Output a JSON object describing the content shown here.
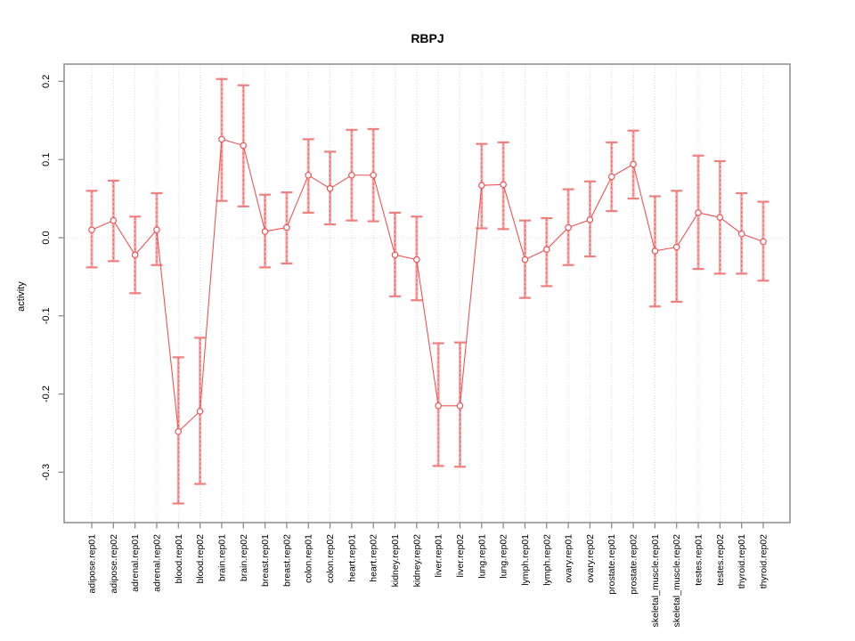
{
  "chart_data": {
    "type": "scatter",
    "subtype": "points-with-error-bars-and-connecting-line",
    "title": "RBPJ",
    "xlabel": "",
    "ylabel": "activity",
    "ylim": [
      -0.36,
      0.22
    ],
    "yticks": [
      "0.2",
      "0.1",
      "0.0",
      "-0.1",
      "-0.2",
      "-0.3"
    ],
    "grid": {
      "horizontal_dotted_at": 0,
      "vertical_dotted": "every category",
      "legend": "none"
    },
    "colors": {
      "point_stroke": "#ee5555",
      "point_fill": "#ffffff",
      "connect_line": "#ee5555",
      "errorbar_band": "#f8aaaa",
      "errorbar_dash": "#ee5555",
      "errorbar_cap": "#f08080",
      "frame": "#8c8c8c",
      "tick": "#8c8c8c",
      "gridline": "#d9d9d9",
      "text": "#000000"
    },
    "categories": [
      "adipose.rep01",
      "adipose.rep02",
      "adrenal.rep01",
      "adrenal.rep02",
      "blood.rep01",
      "blood.rep02",
      "brain.rep01",
      "brain.rep02",
      "breast.rep01",
      "breast.rep02",
      "colon.rep01",
      "colon.rep02",
      "heart.rep01",
      "heart.rep02",
      "kidney.rep01",
      "kidney.rep02",
      "liver.rep01",
      "liver.rep02",
      "lung.rep01",
      "lung.rep02",
      "lymph.rep01",
      "lymph.rep02",
      "ovary.rep01",
      "ovary.rep02",
      "prostate.rep01",
      "prostate.rep02",
      "skeletal_muscle.rep01",
      "skeletal_muscle.rep02",
      "testes.rep01",
      "testes.rep02",
      "thyroid.rep01",
      "thyroid.rep02"
    ],
    "series": [
      {
        "name": "activity",
        "values": [
          0.01,
          0.022,
          -0.022,
          0.01,
          -0.248,
          -0.222,
          0.126,
          0.118,
          0.008,
          0.013,
          0.08,
          0.063,
          0.08,
          0.08,
          -0.022,
          -0.028,
          -0.215,
          -0.215,
          0.067,
          0.068,
          -0.028,
          -0.015,
          0.013,
          0.023,
          0.078,
          0.094,
          -0.017,
          -0.012,
          0.032,
          0.026,
          0.005,
          -0.005
        ],
        "err_low": [
          -0.038,
          -0.03,
          -0.071,
          -0.035,
          -0.34,
          -0.315,
          0.047,
          0.04,
          -0.038,
          -0.033,
          0.032,
          0.017,
          0.022,
          0.021,
          -0.075,
          -0.08,
          -0.292,
          -0.293,
          0.012,
          0.011,
          -0.077,
          -0.062,
          -0.035,
          -0.024,
          0.034,
          0.05,
          -0.088,
          -0.082,
          -0.04,
          -0.046,
          -0.046,
          -0.055
        ],
        "err_high": [
          0.06,
          0.073,
          0.027,
          0.057,
          -0.153,
          -0.128,
          0.203,
          0.195,
          0.055,
          0.058,
          0.126,
          0.11,
          0.138,
          0.139,
          0.032,
          0.027,
          -0.135,
          -0.134,
          0.12,
          0.122,
          0.022,
          0.025,
          0.062,
          0.072,
          0.122,
          0.137,
          0.053,
          0.06,
          0.105,
          0.098,
          0.057,
          0.046
        ]
      }
    ]
  }
}
